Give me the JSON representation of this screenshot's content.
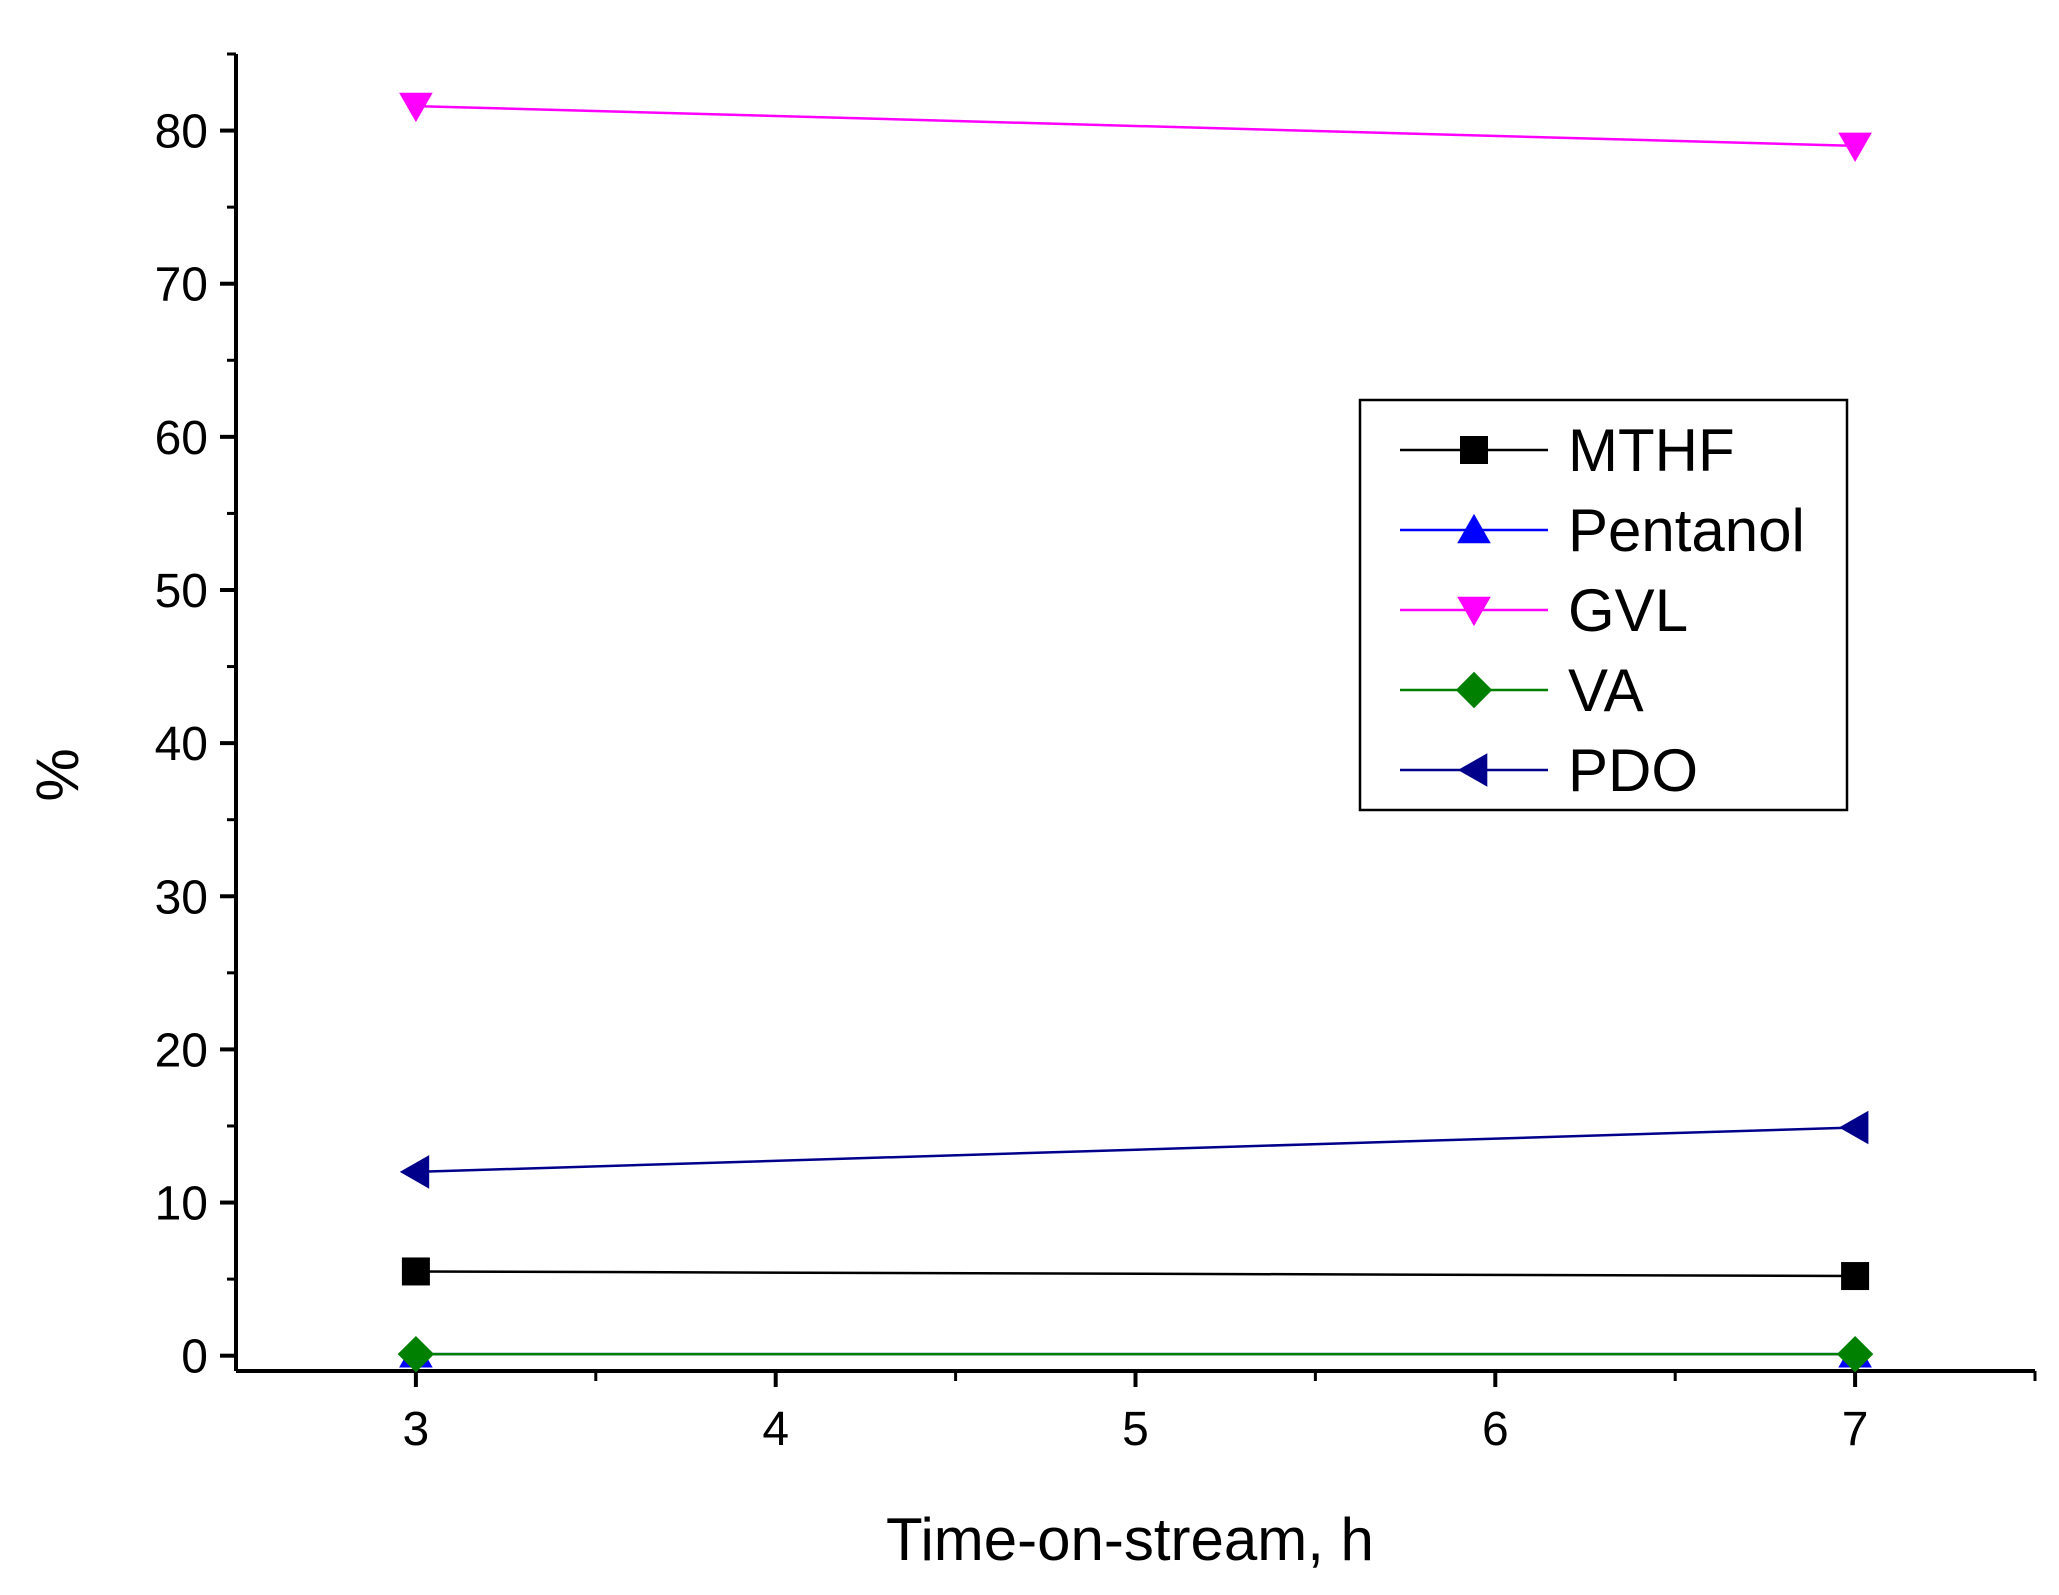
{
  "chart_data": {
    "type": "line",
    "xlabel": "Time-on-stream, h",
    "ylabel": "%",
    "xlim": [
      2.5,
      7.5
    ],
    "ylim": [
      -1,
      85
    ],
    "x_ticks": [
      3,
      4,
      5,
      6,
      7
    ],
    "y_ticks": [
      0,
      10,
      20,
      30,
      40,
      50,
      60,
      70,
      80
    ],
    "legend_position": "right",
    "grid": false,
    "x": [
      3,
      7
    ],
    "series": [
      {
        "name": "MTHF",
        "values": [
          5.5,
          5.2
        ],
        "color": "#000000",
        "marker": "square"
      },
      {
        "name": "Pentanol",
        "values": [
          0.1,
          0.1
        ],
        "color": "#0000ff",
        "marker": "triangle-up"
      },
      {
        "name": "GVL",
        "values": [
          81.6,
          79.0
        ],
        "color": "#ff00ff",
        "marker": "triangle-down"
      },
      {
        "name": "VA",
        "values": [
          0.1,
          0.1
        ],
        "color": "#008000",
        "marker": "diamond"
      },
      {
        "name": "PDO",
        "values": [
          12.0,
          14.9
        ],
        "color": "#00008b",
        "marker": "triangle-left"
      }
    ]
  }
}
